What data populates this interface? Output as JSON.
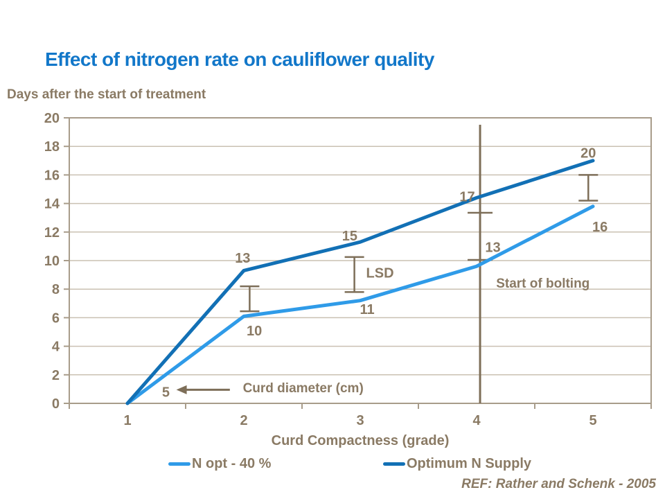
{
  "slide": {
    "ref": "REF: Rather and Schenk - 2005"
  },
  "colors": {
    "title_blue": "#1277c9",
    "text_brown": "#8a7a64",
    "annotation_brown": "#7d6e58",
    "grid": "#cac0b2",
    "axis_border": "#a89c8a"
  },
  "chart_data": {
    "type": "line",
    "title": "Effect of nitrogen rate on cauliflower quality",
    "xlabel": "Curd Compactness (grade)",
    "ylabel": "Days after the start of treatment",
    "x": [
      1,
      2,
      3,
      4,
      5
    ],
    "xlim": [
      0.5,
      5.5
    ],
    "ylim": [
      0,
      20
    ],
    "ytick_step": 2,
    "yticks": [
      0,
      2,
      4,
      6,
      8,
      10,
      12,
      14,
      16,
      18,
      20
    ],
    "grid": "horizontal",
    "legend_position": "bottom",
    "series": [
      {
        "name": "N opt - 40 %",
        "color": "#2f9be8",
        "values": [
          0,
          6.1,
          7.2,
          9.6,
          13.8
        ],
        "curd_diameter_cm": [
          5,
          10,
          11,
          13,
          16
        ]
      },
      {
        "name": "Optimum N Supply",
        "color": "#1270b5",
        "values": [
          0,
          9.3,
          11.3,
          14.4,
          17.0
        ],
        "curd_diameter_cm": [
          5,
          13,
          15,
          17,
          20
        ]
      }
    ],
    "error_bars": [
      {
        "x": 2.05,
        "low": 6.45,
        "high": 8.2
      },
      {
        "x": 2.95,
        "low": 7.8,
        "high": 10.25
      },
      {
        "x": 4.96,
        "low": 14.2,
        "high": 16.0
      }
    ],
    "bolting_line": {
      "x": 4.03,
      "ticks": [
        13.35,
        10.05
      ]
    },
    "arrow": {
      "x_tail": 1.88,
      "x_tip": 1.42,
      "y": 0.95
    },
    "annotations": [
      {
        "text": "13",
        "x": 1.99,
        "y": 10.2
      },
      {
        "text": "10",
        "x": 2.09,
        "y": 5.1
      },
      {
        "text": "15",
        "x": 2.91,
        "y": 11.75
      },
      {
        "text": "11",
        "x": 3.06,
        "y": 6.6
      },
      {
        "text": "17",
        "x": 3.92,
        "y": 14.5
      },
      {
        "text": "13",
        "x": 4.14,
        "y": 10.95
      },
      {
        "text": "20",
        "x": 4.96,
        "y": 17.55
      },
      {
        "text": "16",
        "x": 5.06,
        "y": 12.4
      },
      {
        "text": "5",
        "x": 1.33,
        "y": 0.8
      },
      {
        "text": "LSD",
        "x": 3.17,
        "y": 9.15
      },
      {
        "text": "Start of bolting",
        "x": 4.57,
        "y": 8.45,
        "size": 19
      },
      {
        "text": "Curd diameter (cm)",
        "x": 2.51,
        "y": 1.1,
        "size": 19
      }
    ]
  }
}
